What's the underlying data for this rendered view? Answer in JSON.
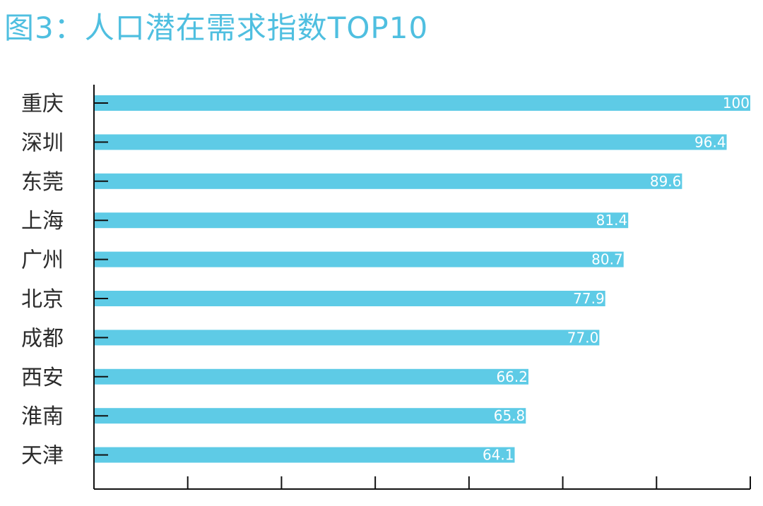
{
  "chart_data": {
    "type": "bar",
    "orientation": "horizontal",
    "title": "图3：人口潜在需求指数TOP10",
    "categories": [
      "重庆",
      "深圳",
      "东莞",
      "上海",
      "广州",
      "北京",
      "成都",
      "西安",
      "淮南",
      "天津"
    ],
    "values": [
      100,
      96.4,
      89.6,
      81.4,
      80.7,
      77.9,
      77.0,
      66.2,
      65.8,
      64.1
    ],
    "value_labels": [
      "100",
      "96.4",
      "89.6",
      "81.4",
      "80.7",
      "77.9",
      "77.0",
      "66.2",
      "65.8",
      "64.1"
    ],
    "xlim": [
      0,
      100
    ],
    "x_ticks_count": 8,
    "grid": false,
    "bar_color": "#5ecbe6",
    "title_color": "#4fbfe0"
  }
}
